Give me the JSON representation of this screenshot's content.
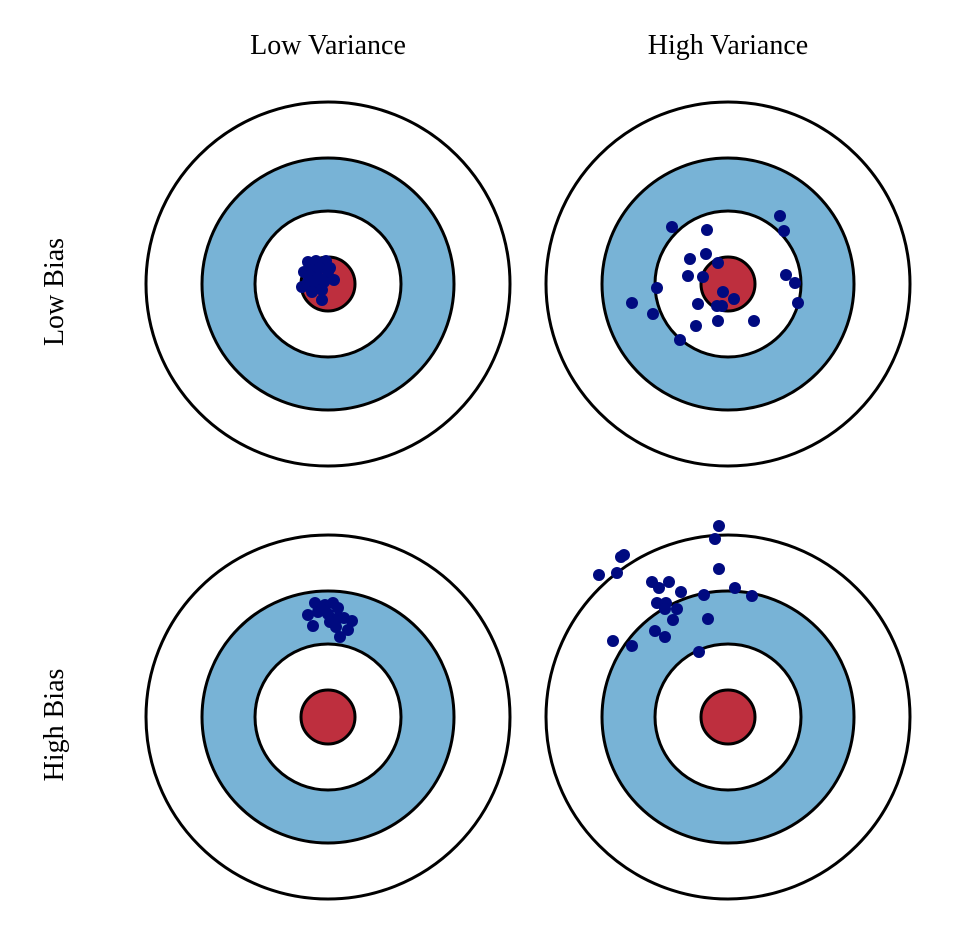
{
  "columns": [
    "Low Variance",
    "High Variance"
  ],
  "rows": [
    "Low Bias",
    "High Bias"
  ],
  "colors": {
    "bullseye": "#BE2F3E",
    "ring": "#78B3D6",
    "background": "#FFFFFF",
    "outline": "#000000",
    "points": "#000A80"
  }
}
